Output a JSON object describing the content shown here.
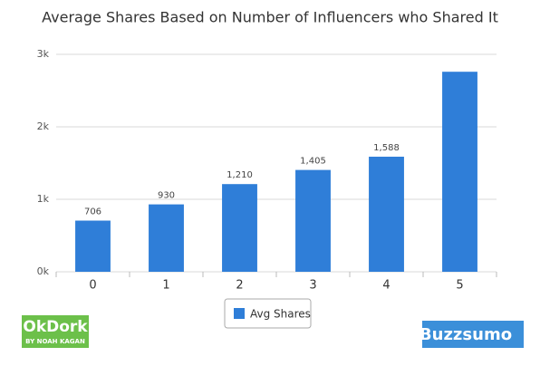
{
  "chart_data": {
    "type": "bar",
    "title": "Average Shares Based on Number of Influencers who Shared It",
    "categories": [
      "0",
      "1",
      "2",
      "3",
      "4",
      "5"
    ],
    "series": [
      {
        "name": "Avg Shares",
        "color": "#2f7ed8",
        "values": [
          706,
          930,
          1210,
          1405,
          1588,
          2760
        ],
        "value_labels": [
          "706",
          "930",
          "1,210",
          "1,405",
          "1,588",
          null
        ]
      }
    ],
    "ylim": [
      0,
      3000
    ],
    "yticks": [
      {
        "value": 0,
        "label": "0k"
      },
      {
        "value": 1000,
        "label": "1k"
      },
      {
        "value": 2000,
        "label": "2k"
      },
      {
        "value": 3000,
        "label": "3k"
      }
    ],
    "grid": true,
    "legend": "bottom"
  },
  "branding": {
    "left": "OkDork",
    "left_sub": "BY NOAH KAGAN",
    "right": "Buzzsumo"
  }
}
